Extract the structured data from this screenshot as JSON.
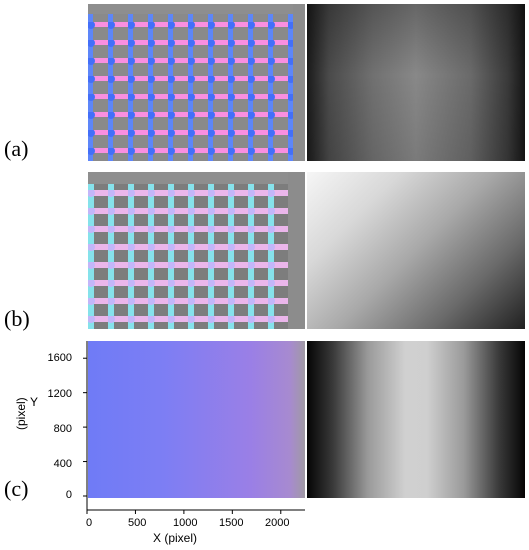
{
  "figure": {
    "labels": [
      "(a)",
      "(b)",
      "(c)"
    ]
  },
  "panel_c": {
    "x_ticks": [
      "0",
      "500",
      "1000",
      "1500",
      "2000"
    ],
    "y_ticks": [
      "0",
      "400",
      "800",
      "1200",
      "1600"
    ],
    "x_axis_title": "X (pixel)",
    "y_axis_title": "Y",
    "y_axis_unit": "(pixel)"
  },
  "chart_data": {
    "type": "heatmap",
    "title": "",
    "xlabel": "X (pixel)",
    "ylabel": "Y (pixel)",
    "xlim": [
      0,
      2250
    ],
    "ylim": [
      0,
      1800
    ],
    "x_ticks": [
      0,
      500,
      1000,
      1500,
      2000
    ],
    "y_ticks": [
      0,
      400,
      800,
      1200,
      1600
    ],
    "grid": false
  },
  "colors": {
    "normal_left": "#6f7bf6",
    "normal_mid": "#9a7fe6",
    "normal_right": "#a084b2",
    "grid_gray": "#8c8c8c",
    "pink": "#ff8ce0",
    "blue": "#4a7cff",
    "cyan": "#78f0f0"
  }
}
